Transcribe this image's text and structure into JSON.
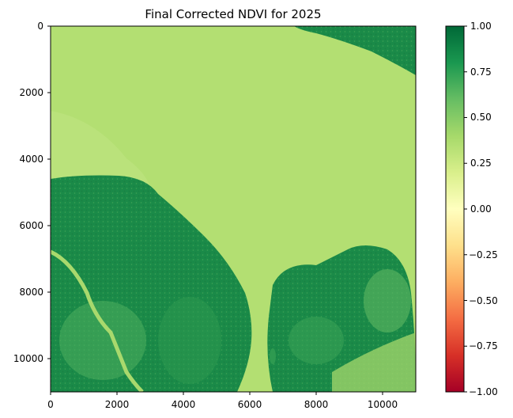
{
  "chart_data": [
    {
      "type": "heatmap",
      "title": "Final Corrected NDVI for 2025",
      "xlabel": "",
      "ylabel": "",
      "xlim": [
        0,
        11000
      ],
      "ylim": [
        11000,
        0
      ],
      "x_ticks": [
        "0",
        "2000",
        "4000",
        "6000",
        "8000",
        "10000"
      ],
      "y_ticks": [
        "0",
        "2000",
        "4000",
        "6000",
        "8000",
        "10000"
      ],
      "grid": false,
      "image_summary": {
        "water_ndvi_approx": 0.35,
        "dense_vegetation_ndvi_approx": 0.9,
        "regions": [
          "coastal estuary",
          "mangrove vegetation lower-left",
          "vegetated peninsula lower-right",
          "vegetation strip upper-right"
        ]
      }
    },
    {
      "type": "colorbar",
      "colormap": "RdYlGn",
      "clim": [
        -1.0,
        1.0
      ],
      "ticks": [
        "1.00",
        "0.75",
        "0.50",
        "0.25",
        "0.00",
        "−0.25",
        "−0.50",
        "−0.75",
        "−1.00"
      ]
    }
  ],
  "colors": {
    "water": "#b3df72",
    "vegetation_dense": "#1a8a48",
    "vegetation_mid": "#3fa75a",
    "colormap_stops": [
      "#a50026",
      "#d73027",
      "#f46d43",
      "#fdae61",
      "#fee08b",
      "#ffffbf",
      "#d9ef8b",
      "#a6d96a",
      "#66bd63",
      "#1a9850",
      "#006837"
    ]
  }
}
